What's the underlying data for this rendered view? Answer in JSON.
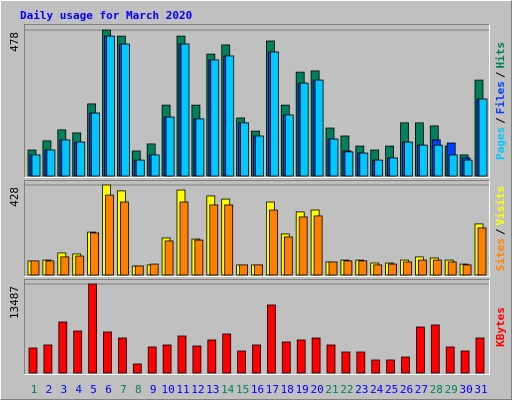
{
  "chart_data": [
    {
      "type": "bar",
      "title": "Daily usage for March 2020",
      "legend_separator": "/",
      "ylim": [
        0,
        478
      ],
      "yticks": [
        478
      ],
      "series": [
        {
          "name": "Hits",
          "color": "#00805c",
          "values": [
            85,
            115,
            151,
            141,
            236,
            478,
            458,
            82,
            105,
            232,
            458,
            232,
            399,
            429,
            190,
            147,
            442,
            232,
            340,
            344,
            157,
            131,
            98,
            85,
            98,
            174,
            174,
            164,
            98,
            69,
            314
          ]
        },
        {
          "name": "Files",
          "color": "#0040ff",
          "values": [
            69,
            85,
            118,
            111,
            206,
            458,
            432,
            52,
            69,
            193,
            432,
            187,
            380,
            393,
            174,
            131,
            406,
            200,
            304,
            314,
            121,
            82,
            75,
            52,
            59,
            111,
            101,
            118,
            108,
            59,
            252
          ]
        },
        {
          "name": "Pages",
          "color": "#00c8ff",
          "values": [
            69,
            85,
            118,
            111,
            206,
            458,
            432,
            52,
            69,
            193,
            432,
            187,
            380,
            393,
            174,
            131,
            406,
            200,
            304,
            314,
            121,
            79,
            75,
            52,
            59,
            111,
            101,
            101,
            69,
            52,
            252
          ]
        }
      ]
    },
    {
      "type": "bar",
      "legend_separator": "/",
      "ylim": [
        0,
        428
      ],
      "yticks": [
        428
      ],
      "series": [
        {
          "name": "Visits",
          "color": "#ffff00",
          "values": [
            67,
            71,
            105,
            100,
            204,
            428,
            400,
            43,
            48,
            176,
            404,
            171,
            376,
            361,
            48,
            48,
            347,
            195,
            300,
            309,
            62,
            71,
            71,
            57,
            57,
            71,
            86,
            81,
            71,
            52,
            243
          ]
        },
        {
          "name": "Sites",
          "color": "#ff8000",
          "values": [
            67,
            67,
            86,
            90,
            200,
            380,
            347,
            43,
            52,
            162,
            347,
            166,
            333,
            333,
            48,
            48,
            309,
            181,
            276,
            281,
            62,
            67,
            67,
            48,
            52,
            62,
            71,
            71,
            62,
            48,
            224
          ]
        }
      ]
    },
    {
      "type": "bar",
      "ylim": [
        0,
        13487
      ],
      "yticks": [
        13487
      ],
      "categories": [
        "1",
        "2",
        "3",
        "4",
        "5",
        "6",
        "7",
        "8",
        "9",
        "10",
        "11",
        "12",
        "13",
        "14",
        "15",
        "16",
        "17",
        "18",
        "19",
        "20",
        "21",
        "22",
        "23",
        "24",
        "25",
        "26",
        "27",
        "28",
        "29",
        "30",
        "31"
      ],
      "category_colors": [
        "#00805c",
        "#0000ff",
        "#0000ff",
        "#0000ff",
        "#0000ff",
        "#0000ff",
        "#00805c",
        "#00805c",
        "#0000ff",
        "#0000ff",
        "#0000ff",
        "#0000ff",
        "#0000ff",
        "#00805c",
        "#00805c",
        "#0000ff",
        "#0000ff",
        "#0000ff",
        "#0000ff",
        "#0000ff",
        "#00805c",
        "#00805c",
        "#0000ff",
        "#0000ff",
        "#0000ff",
        "#0000ff",
        "#0000ff",
        "#00805c",
        "#00805c",
        "#0000ff",
        "#0000ff"
      ],
      "series": [
        {
          "name": "KBytes",
          "color": "#ff0000",
          "values": [
            3789,
            4243,
            7728,
            6364,
            13487,
            6213,
            5304,
            1364,
            3940,
            4243,
            5607,
            4091,
            5001,
            5910,
            3334,
            4243,
            10304,
            4698,
            5001,
            5304,
            4243,
            3182,
            3182,
            1970,
            1970,
            2424,
            6970,
            7274,
            3940,
            3334,
            5304
          ]
        }
      ]
    }
  ]
}
